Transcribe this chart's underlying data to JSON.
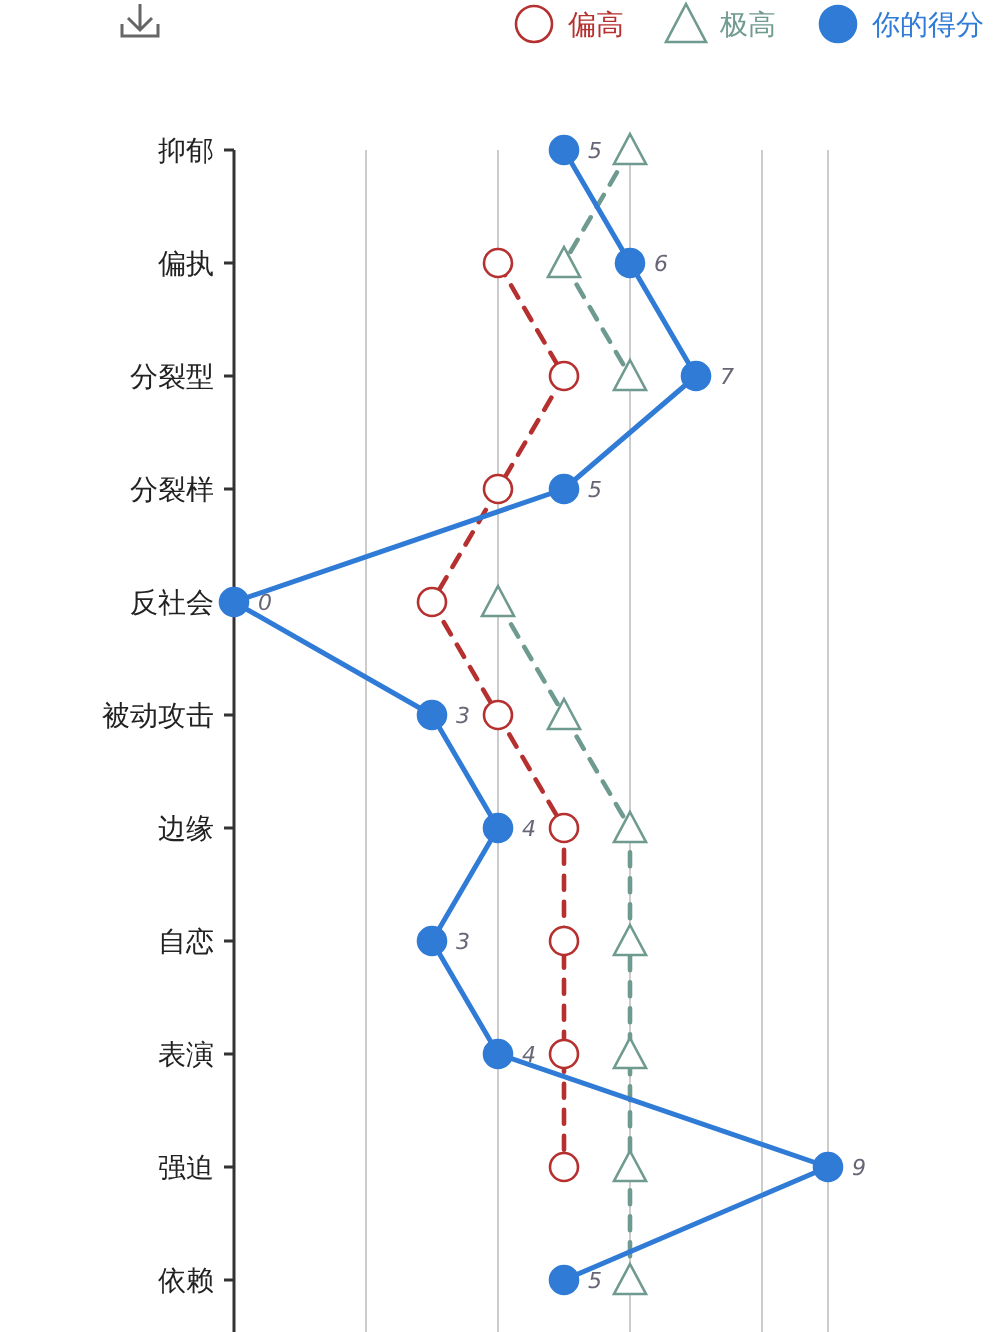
{
  "chart_data": {
    "type": "line",
    "orientation": "horizontal",
    "categories": [
      "抑郁",
      "偏执",
      "分裂型",
      "分裂样",
      "反社会",
      "被动攻击",
      "边缘",
      "自恋",
      "表演",
      "强迫",
      "依赖"
    ],
    "xlim": [
      0,
      9
    ],
    "xticks": [
      {
        "value": 0,
        "label": null
      },
      {
        "value": 2,
        "label": null
      },
      {
        "value": 4,
        "label": null
      },
      {
        "value": 6,
        "label": null
      },
      {
        "value": 8,
        "label": null
      },
      {
        "value": 9,
        "label": null
      }
    ],
    "grid": "x",
    "legend": "top right",
    "series": [
      {
        "name": "偏高",
        "color": "#b5302f",
        "marker": "circle",
        "line_style": "dashed",
        "values": [
          null,
          4,
          5,
          4,
          3,
          4,
          5,
          5,
          5,
          5,
          null
        ]
      },
      {
        "name": "极高",
        "color": "#6f9a90",
        "marker": "triangle",
        "line_style": "dashed",
        "values": [
          6,
          5,
          6,
          null,
          4,
          5,
          6,
          6,
          6,
          6,
          6
        ]
      },
      {
        "name": "你的得分",
        "color": "#2f7bd6",
        "marker": "circle",
        "line_style": "solid",
        "values": [
          5,
          6,
          7,
          5,
          0,
          3,
          4,
          3,
          4,
          9,
          5
        ],
        "value_labels": [
          "5",
          "6",
          "7",
          "5",
          "0",
          "3",
          "4",
          "3",
          "4",
          "9",
          "5"
        ]
      }
    ]
  }
}
